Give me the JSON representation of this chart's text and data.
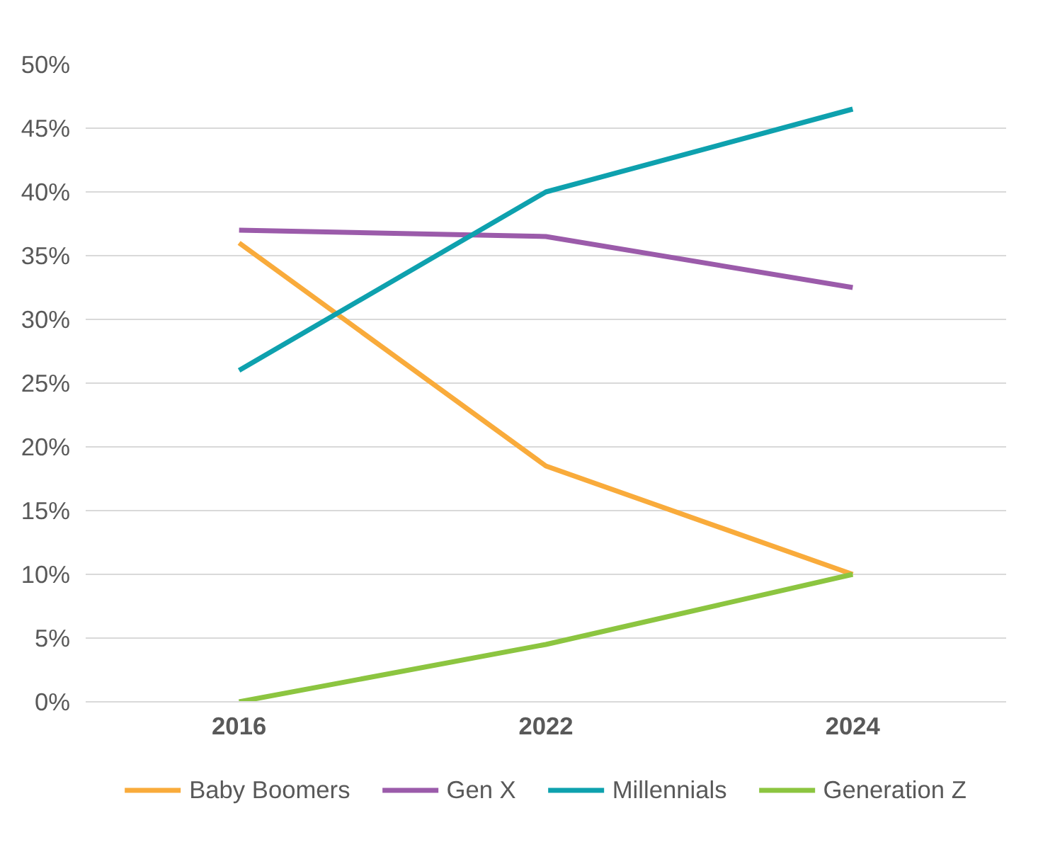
{
  "chart_data": {
    "type": "line",
    "categories": [
      "2016",
      "2022",
      "2024"
    ],
    "series": [
      {
        "name": "Baby Boomers",
        "color": "#f9ab3b",
        "values": [
          36,
          18.5,
          10
        ]
      },
      {
        "name": "Gen X",
        "color": "#9b5baa",
        "values": [
          37,
          36.5,
          32.5
        ]
      },
      {
        "name": "Millennials",
        "color": "#0ea1ae",
        "values": [
          26,
          40,
          46.5
        ]
      },
      {
        "name": "Generation Z",
        "color": "#8cc540",
        "values": [
          0,
          4.5,
          10
        ]
      }
    ],
    "ylim": [
      0,
      50
    ],
    "yticks": [
      {
        "value": 0,
        "label": "0%"
      },
      {
        "value": 5,
        "label": "5%"
      },
      {
        "value": 10,
        "label": "10%"
      },
      {
        "value": 15,
        "label": "15%"
      },
      {
        "value": 20,
        "label": "20%"
      },
      {
        "value": 25,
        "label": "25%"
      },
      {
        "value": 30,
        "label": "30%"
      },
      {
        "value": 35,
        "label": "35%"
      },
      {
        "value": 40,
        "label": "40%"
      },
      {
        "value": 45,
        "label": "45%"
      },
      {
        "value": 50,
        "label": "50%"
      }
    ],
    "grid": "y",
    "legend": "bottom",
    "marker": "none",
    "line_style": "solid"
  }
}
